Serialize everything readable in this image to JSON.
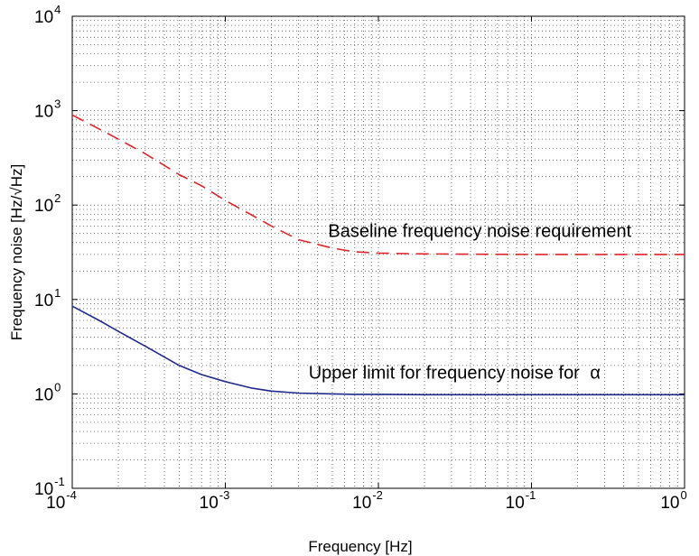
{
  "chart_data": {
    "type": "line",
    "xlabel": "Frequency [Hz]",
    "ylabel": "Frequency noise [Hz/√Hz]",
    "x_scale": "log",
    "y_scale": "log",
    "xlim": [
      0.0001,
      1
    ],
    "ylim": [
      0.1,
      10000
    ],
    "grid": true,
    "x_ticks": [
      {
        "base": "10",
        "exp": "-4"
      },
      {
        "base": "10",
        "exp": "-3"
      },
      {
        "base": "10",
        "exp": "-2"
      },
      {
        "base": "10",
        "exp": "-1"
      },
      {
        "base": "10",
        "exp": "0"
      }
    ],
    "y_ticks": [
      {
        "base": "10",
        "exp": "-1"
      },
      {
        "base": "10",
        "exp": "0"
      },
      {
        "base": "10",
        "exp": "1"
      },
      {
        "base": "10",
        "exp": "2"
      },
      {
        "base": "10",
        "exp": "3"
      },
      {
        "base": "10",
        "exp": "4"
      }
    ],
    "series": [
      {
        "style": "dashed",
        "color": "#e0242b",
        "x": [
          0.0001,
          0.00015,
          0.0002,
          0.0003,
          0.0005,
          0.0007,
          0.001,
          0.0015,
          0.002,
          0.003,
          0.005,
          0.007,
          0.01,
          0.02,
          0.05,
          0.1,
          0.3,
          1
        ],
        "y": [
          900,
          640,
          500,
          350,
          210,
          160,
          112,
          78,
          60,
          43,
          35,
          32,
          31,
          30.4,
          30.1,
          30,
          30,
          30
        ]
      },
      {
        "style": "solid",
        "color": "#1f2a8c",
        "x": [
          0.0001,
          0.00015,
          0.0002,
          0.0003,
          0.0005,
          0.0007,
          0.001,
          0.0015,
          0.002,
          0.003,
          0.005,
          0.007,
          0.01,
          0.02,
          0.05,
          0.1,
          0.3,
          1
        ],
        "y": [
          8.5,
          6.0,
          4.6,
          3.2,
          2.0,
          1.6,
          1.35,
          1.15,
          1.07,
          1.02,
          1.0,
          0.99,
          0.99,
          0.98,
          0.98,
          0.98,
          0.98,
          0.98
        ]
      }
    ],
    "annotations": [
      {
        "text": "Baseline frequency noise requirement",
        "x": 0.0047,
        "y": 46
      },
      {
        "text": "Upper limit for frequency noise for",
        "symbol": "α",
        "x": 0.0035,
        "y": 1.45
      }
    ]
  }
}
